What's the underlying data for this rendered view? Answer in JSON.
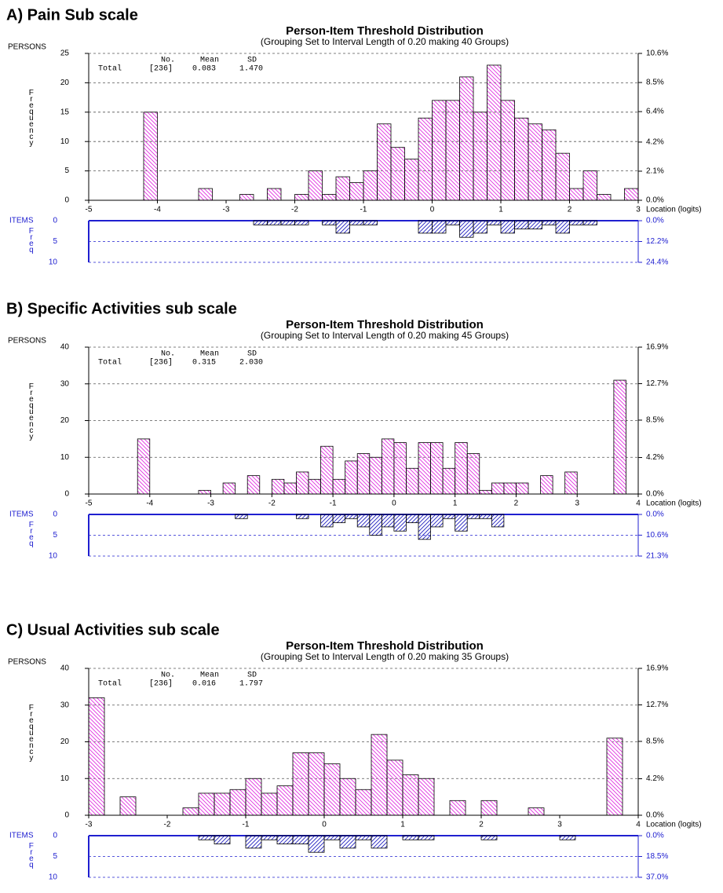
{
  "chart_data": [
    {
      "type": "histogram",
      "heading": "A) Pain Sub scale",
      "title": "Person-Item Threshold Distribution",
      "subtitle": "(Grouping Set to Interval Length of 0.20 making 40 Groups)",
      "ylabel": "Frequency",
      "items_ylabel": "Freq",
      "xlabel": "Location (logits)",
      "stats_header": [
        "No.",
        "Mean",
        "SD"
      ],
      "stats_row": [
        "Total",
        "[236]",
        "0.083",
        "1.470"
      ],
      "bins": [
        -5,
        -4.8,
        -4.6,
        -4.4,
        -4.2,
        -4,
        -3.8,
        -3.6,
        -3.4,
        -3.2,
        -3,
        -2.8,
        -2.6,
        -2.4,
        -2.2,
        -2,
        -1.8,
        -1.6,
        -1.4,
        -1.2,
        -1,
        -0.8,
        -0.6,
        -0.4,
        -0.2,
        0,
        0.2,
        0.4,
        0.6,
        0.8,
        1,
        1.2,
        1.4,
        1.6,
        1.8,
        2,
        2.2,
        2.4,
        2.6,
        2.8,
        3
      ],
      "xlim": [
        -5,
        3
      ],
      "xticks": [
        -5,
        -4,
        -3,
        -2,
        -1,
        0,
        1,
        2,
        3
      ],
      "ylim": [
        0,
        25
      ],
      "yticks": [
        0,
        5,
        10,
        15,
        20,
        25
      ],
      "y2lim": [
        0,
        10.6
      ],
      "y2ticks": [
        {
          "value": 0,
          "label": "0.0%"
        },
        {
          "value": 2.1,
          "label": "2.1%"
        },
        {
          "value": 4.2,
          "label": "4.2%"
        },
        {
          "value": 6.4,
          "label": "6.4%"
        },
        {
          "value": 8.5,
          "label": "8.5%"
        },
        {
          "value": 10.6,
          "label": "10.6%"
        }
      ],
      "items_ylim": [
        0,
        10
      ],
      "items_yticks": [
        0,
        5,
        10
      ],
      "items_y2lim": [
        0,
        24.4
      ],
      "items_y2ticks": [
        {
          "value": 0,
          "label": "0.0%"
        },
        {
          "value": 12.2,
          "label": "12.2%"
        },
        {
          "value": 24.4,
          "label": "24.4%"
        }
      ],
      "series": [
        {
          "name": "PERSONS",
          "color": "#e030e0",
          "values": [
            0,
            0,
            0,
            0,
            15,
            0,
            0,
            0,
            2,
            0,
            0,
            1,
            0,
            2,
            0,
            1,
            5,
            1,
            4,
            3,
            5,
            13,
            9,
            7,
            14,
            17,
            17,
            21,
            15,
            23,
            17,
            14,
            13,
            12,
            8,
            2,
            5,
            1,
            0,
            2
          ]
        },
        {
          "name": "ITEMS",
          "color": "#2020c0",
          "values": [
            0,
            0,
            0,
            0,
            0,
            0,
            0,
            0,
            0,
            0,
            0,
            0,
            1,
            1,
            1,
            1,
            0,
            1,
            3,
            1,
            1,
            0,
            0,
            0,
            3,
            3,
            1,
            4,
            3,
            1,
            3,
            2,
            2,
            1,
            3,
            1,
            1,
            0,
            0,
            0
          ]
        }
      ]
    },
    {
      "type": "histogram",
      "heading": "B) Specific Activities sub scale",
      "title": "Person-Item Threshold Distribution",
      "subtitle": "(Grouping Set to Interval Length of 0.20 making 45 Groups)",
      "ylabel": "Frequency",
      "items_ylabel": "Freq",
      "xlabel": "Location (logits)",
      "stats_header": [
        "No.",
        "Mean",
        "SD"
      ],
      "stats_row": [
        "Total",
        "[236]",
        "0.315",
        "2.030"
      ],
      "bins": [
        -5,
        -4.8,
        -4.6,
        -4.4,
        -4.2,
        -4,
        -3.8,
        -3.6,
        -3.4,
        -3.2,
        -3,
        -2.8,
        -2.6,
        -2.4,
        -2.2,
        -2,
        -1.8,
        -1.6,
        -1.4,
        -1.2,
        -1,
        -0.8,
        -0.6,
        -0.4,
        -0.2,
        0,
        0.2,
        0.4,
        0.6,
        0.8,
        1,
        1.2,
        1.4,
        1.6,
        1.8,
        2,
        2.2,
        2.4,
        2.6,
        2.8,
        3,
        3.2,
        3.4,
        3.6,
        3.8,
        4
      ],
      "xlim": [
        -5,
        4
      ],
      "xticks": [
        -5,
        -4,
        -3,
        -2,
        -1,
        0,
        1,
        2,
        3,
        4
      ],
      "ylim": [
        0,
        40
      ],
      "yticks": [
        0,
        10,
        20,
        30,
        40
      ],
      "y2lim": [
        0,
        16.9
      ],
      "y2ticks": [
        {
          "value": 0,
          "label": "0.0%"
        },
        {
          "value": 4.2,
          "label": "4.2%"
        },
        {
          "value": 8.5,
          "label": "8.5%"
        },
        {
          "value": 12.7,
          "label": "12.7%"
        },
        {
          "value": 16.9,
          "label": "16.9%"
        }
      ],
      "items_ylim": [
        0,
        10
      ],
      "items_yticks": [
        0,
        5,
        10
      ],
      "items_y2lim": [
        0,
        21.3
      ],
      "items_y2ticks": [
        {
          "value": 0,
          "label": "0.0%"
        },
        {
          "value": 10.6,
          "label": "10.6%"
        },
        {
          "value": 21.3,
          "label": "21.3%"
        }
      ],
      "series": [
        {
          "name": "PERSONS",
          "color": "#e030e0",
          "values": [
            0,
            0,
            0,
            0,
            15,
            0,
            0,
            0,
            0,
            1,
            0,
            3,
            0,
            5,
            0,
            4,
            3,
            6,
            4,
            13,
            4,
            9,
            11,
            10,
            15,
            14,
            7,
            14,
            14,
            7,
            14,
            11,
            1,
            3,
            3,
            3,
            0,
            5,
            0,
            6,
            0,
            0,
            0,
            31,
            0
          ]
        },
        {
          "name": "ITEMS",
          "color": "#2020c0",
          "values": [
            0,
            0,
            0,
            0,
            0,
            0,
            0,
            0,
            0,
            0,
            0,
            0,
            1,
            0,
            0,
            0,
            0,
            1,
            0,
            3,
            2,
            1,
            3,
            5,
            3,
            4,
            2,
            6,
            3,
            1,
            4,
            1,
            1,
            3,
            0,
            0,
            0,
            0,
            0,
            0,
            0,
            0,
            0,
            0,
            0
          ]
        }
      ]
    },
    {
      "type": "histogram",
      "heading": "C) Usual Activities sub scale",
      "title": "Person-Item Threshold Distribution",
      "subtitle": "(Grouping Set to Interval Length of 0.20 making 35 Groups)",
      "ylabel": "Frequency",
      "items_ylabel": "Freq",
      "xlabel": "Location (logits)",
      "stats_header": [
        "No.",
        "Mean",
        "SD"
      ],
      "stats_row": [
        "Total",
        "[236]",
        "0.016",
        "1.797"
      ],
      "bins": [
        -3,
        -2.8,
        -2.6,
        -2.4,
        -2.2,
        -2,
        -1.8,
        -1.6,
        -1.4,
        -1.2,
        -1,
        -0.8,
        -0.6,
        -0.4,
        -0.2,
        0,
        0.2,
        0.4,
        0.6,
        0.8,
        1,
        1.2,
        1.4,
        1.6,
        1.8,
        2,
        2.2,
        2.4,
        2.6,
        2.8,
        3,
        3.2,
        3.4,
        3.6,
        3.8,
        4
      ],
      "xlim": [
        -3,
        4
      ],
      "xticks": [
        -3,
        -2,
        -1,
        0,
        1,
        2,
        3,
        4
      ],
      "ylim": [
        0,
        40
      ],
      "yticks": [
        0,
        10,
        20,
        30,
        40
      ],
      "y2lim": [
        0,
        16.9
      ],
      "y2ticks": [
        {
          "value": 0,
          "label": "0.0%"
        },
        {
          "value": 4.2,
          "label": "4.2%"
        },
        {
          "value": 8.5,
          "label": "8.5%"
        },
        {
          "value": 12.7,
          "label": "12.7%"
        },
        {
          "value": 16.9,
          "label": "16.9%"
        }
      ],
      "items_ylim": [
        0,
        10
      ],
      "items_yticks": [
        0,
        5,
        10
      ],
      "items_y2lim": [
        0,
        37
      ],
      "items_y2ticks": [
        {
          "value": 0,
          "label": "0.0%"
        },
        {
          "value": 18.5,
          "label": "18.5%"
        },
        {
          "value": 37,
          "label": "37.0%"
        }
      ],
      "series": [
        {
          "name": "PERSONS",
          "color": "#e030e0",
          "values": [
            32,
            0,
            5,
            0,
            0,
            0,
            2,
            6,
            6,
            7,
            10,
            6,
            8,
            17,
            17,
            14,
            10,
            7,
            22,
            15,
            11,
            10,
            0,
            4,
            0,
            4,
            0,
            0,
            2,
            0,
            0,
            0,
            0,
            21,
            0
          ]
        },
        {
          "name": "ITEMS",
          "color": "#2020c0",
          "values": [
            0,
            0,
            0,
            0,
            0,
            0,
            0,
            1,
            2,
            0,
            3,
            1,
            2,
            2,
            4,
            1,
            3,
            1,
            3,
            0,
            1,
            1,
            0,
            0,
            0,
            1,
            0,
            0,
            0,
            0,
            1,
            0,
            0,
            0,
            0
          ]
        }
      ]
    }
  ]
}
